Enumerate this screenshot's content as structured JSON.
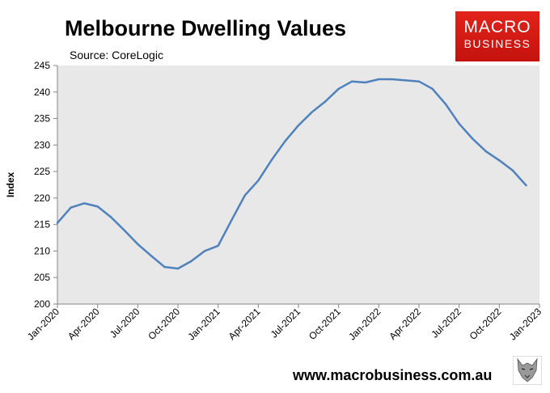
{
  "header": {
    "title": "Melbourne Dwelling Values",
    "subtitle": "Source: CoreLogic"
  },
  "logo": {
    "line1": "MACRO",
    "line2": "BUSINESS"
  },
  "footer": {
    "url": "www.macrobusiness.com.au"
  },
  "colors": {
    "line": "#4f81bd",
    "plot_bg": "#e8e8e8",
    "logo_red": "#d9231c"
  },
  "chart_data": {
    "type": "line",
    "title": "Melbourne Dwelling Values",
    "subtitle": "Source: CoreLogic",
    "ylabel": "Index",
    "xlabel": "",
    "ylim": [
      200,
      245
    ],
    "yticks": [
      200,
      205,
      210,
      215,
      220,
      225,
      230,
      235,
      240,
      245
    ],
    "xticks": [
      "Jan-2020",
      "Apr-2020",
      "Jul-2020",
      "Oct-2020",
      "Jan-2021",
      "Apr-2021",
      "Jul-2021",
      "Oct-2021",
      "Jan-2022",
      "Apr-2022",
      "Jul-2022",
      "Oct-2022",
      "Jan-2023"
    ],
    "grid": false,
    "series": [
      {
        "x": [
          "Jan-2020",
          "Feb-2020",
          "Mar-2020",
          "Apr-2020",
          "May-2020",
          "Jun-2020",
          "Jul-2020",
          "Aug-2020",
          "Sep-2020",
          "Oct-2020",
          "Nov-2020",
          "Dec-2020",
          "Jan-2021",
          "Feb-2021",
          "Mar-2021",
          "Apr-2021",
          "May-2021",
          "Jun-2021",
          "Jul-2021",
          "Aug-2021",
          "Sep-2021",
          "Oct-2021",
          "Nov-2021",
          "Dec-2021",
          "Jan-2022",
          "Feb-2022",
          "Mar-2022",
          "Apr-2022",
          "May-2022",
          "Jun-2022",
          "Jul-2022",
          "Aug-2022",
          "Sep-2022",
          "Oct-2022",
          "Nov-2022",
          "Dec-2022"
        ],
        "values": [
          215.3,
          218.2,
          219.0,
          218.4,
          216.4,
          213.9,
          211.3,
          209.1,
          207.0,
          206.7,
          208.1,
          210.0,
          211.0,
          215.8,
          220.5,
          223.3,
          227.2,
          230.7,
          233.7,
          236.2,
          238.2,
          240.6,
          242.0,
          241.8,
          242.4,
          242.4,
          242.2,
          242.0,
          240.6,
          237.7,
          234.0,
          231.2,
          228.8,
          227.1,
          225.2,
          222.4
        ]
      }
    ]
  }
}
